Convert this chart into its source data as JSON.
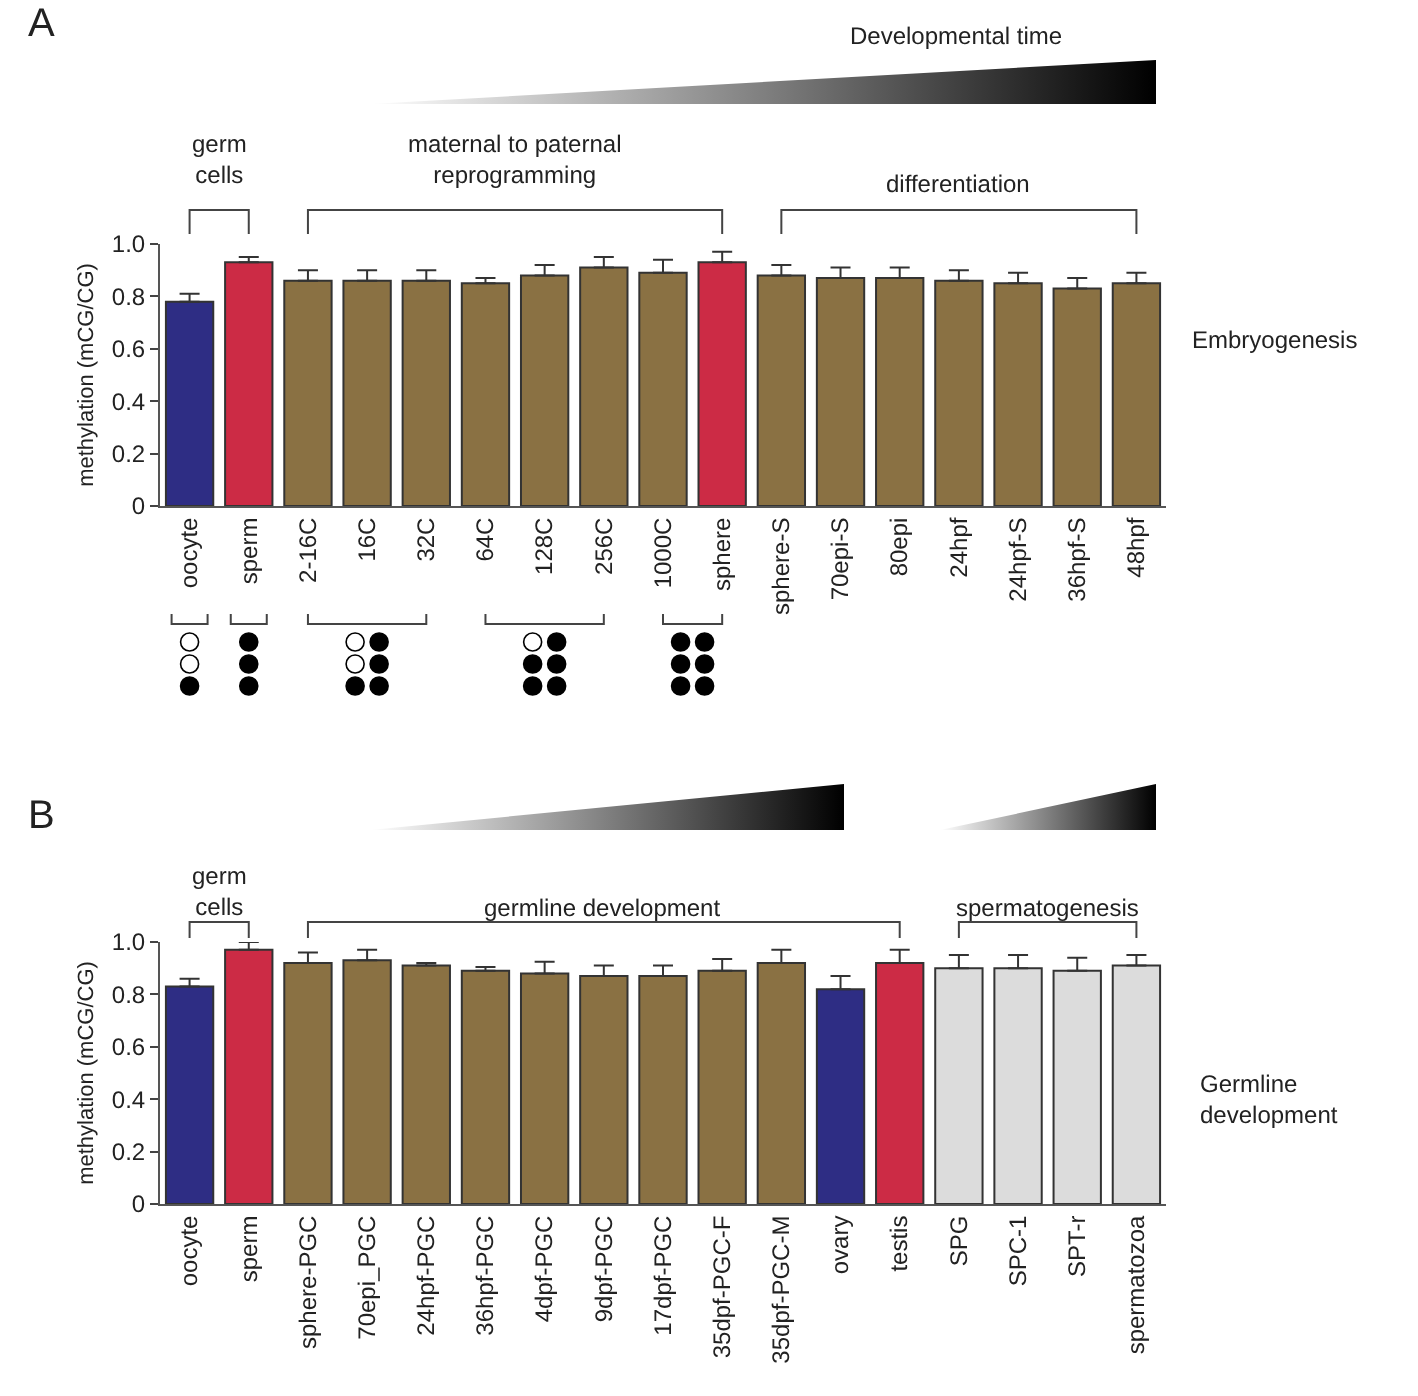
{
  "chart_data": [
    {
      "type": "bar",
      "ylabel": "methylation (mCG/CG)",
      "categories": [
        "oocyte",
        "sperm",
        "2-16C",
        "16C",
        "32C",
        "64C",
        "128C",
        "256C",
        "1000C",
        "sphere",
        "sphere-S",
        "70epi-S",
        "80epi",
        "24hpf",
        "24hpf-S",
        "36hpf-S",
        "48hpf"
      ],
      "values": [
        0.78,
        0.93,
        0.86,
        0.86,
        0.86,
        0.85,
        0.88,
        0.91,
        0.89,
        0.93,
        0.88,
        0.87,
        0.87,
        0.86,
        0.85,
        0.83,
        0.85
      ],
      "errors": [
        0.03,
        0.02,
        0.04,
        0.04,
        0.04,
        0.02,
        0.04,
        0.04,
        0.05,
        0.04,
        0.04,
        0.04,
        0.04,
        0.04,
        0.04,
        0.04,
        0.04
      ],
      "colors": [
        "#2e2d84",
        "#cc2b45",
        "#8a7143",
        "#8a7143",
        "#8a7143",
        "#8a7143",
        "#8a7143",
        "#8a7143",
        "#8a7143",
        "#cc2b45",
        "#8a7143",
        "#8a7143",
        "#8a7143",
        "#8a7143",
        "#8a7143",
        "#8a7143",
        "#8a7143"
      ],
      "ylim": [
        0,
        1.0
      ],
      "yticks": [
        0,
        0.2,
        0.4,
        0.6,
        0.8,
        {
          "value": 1.0,
          "label": "1.0"
        }
      ],
      "annotations": [
        "A",
        "Developmental time",
        "germ cells",
        "maternal to paternal reprogramming",
        "differentiation",
        "Embryogenesis"
      ]
    },
    {
      "type": "bar",
      "ylabel": "methylation (mCG/CG)",
      "categories": [
        "oocyte",
        "sperm",
        "sphere-PGC",
        "70epi_PGC",
        "24hpf-PGC",
        "36hpf-PGC",
        "4dpf-PGC",
        "9dpf-PGC",
        "17dpf-PGC",
        "35dpf-PGC-F",
        "35dpf-PGC-M",
        "ovary",
        "testis",
        "SPG",
        "SPC-1",
        "SPT-r",
        "spermatozoa"
      ],
      "values": [
        0.83,
        0.97,
        0.92,
        0.93,
        0.91,
        0.89,
        0.88,
        0.87,
        0.87,
        0.89,
        0.92,
        0.82,
        0.92,
        0.9,
        0.9,
        0.89,
        0.91
      ],
      "errors": [
        0.03,
        0.03,
        0.04,
        0.04,
        0.01,
        0.015,
        0.045,
        0.04,
        0.04,
        0.045,
        0.05,
        0.05,
        0.05,
        0.05,
        0.05,
        0.05,
        0.04
      ],
      "colors": [
        "#2e2d84",
        "#cc2b45",
        "#8a7143",
        "#8a7143",
        "#8a7143",
        "#8a7143",
        "#8a7143",
        "#8a7143",
        "#8a7143",
        "#8a7143",
        "#8a7143",
        "#2e2d84",
        "#cc2b45",
        "#dcdcdc",
        "#dcdcdc",
        "#dcdcdc",
        "#dcdcdc"
      ],
      "ylim": [
        0,
        1.0
      ],
      "yticks": [
        0,
        0.2,
        0.4,
        0.6,
        0.8,
        {
          "value": 1.0,
          "label": "1.0"
        }
      ],
      "annotations": [
        "B",
        "germ cells",
        "germline development",
        "spermatogenesis",
        "Germline development"
      ]
    }
  ]
}
